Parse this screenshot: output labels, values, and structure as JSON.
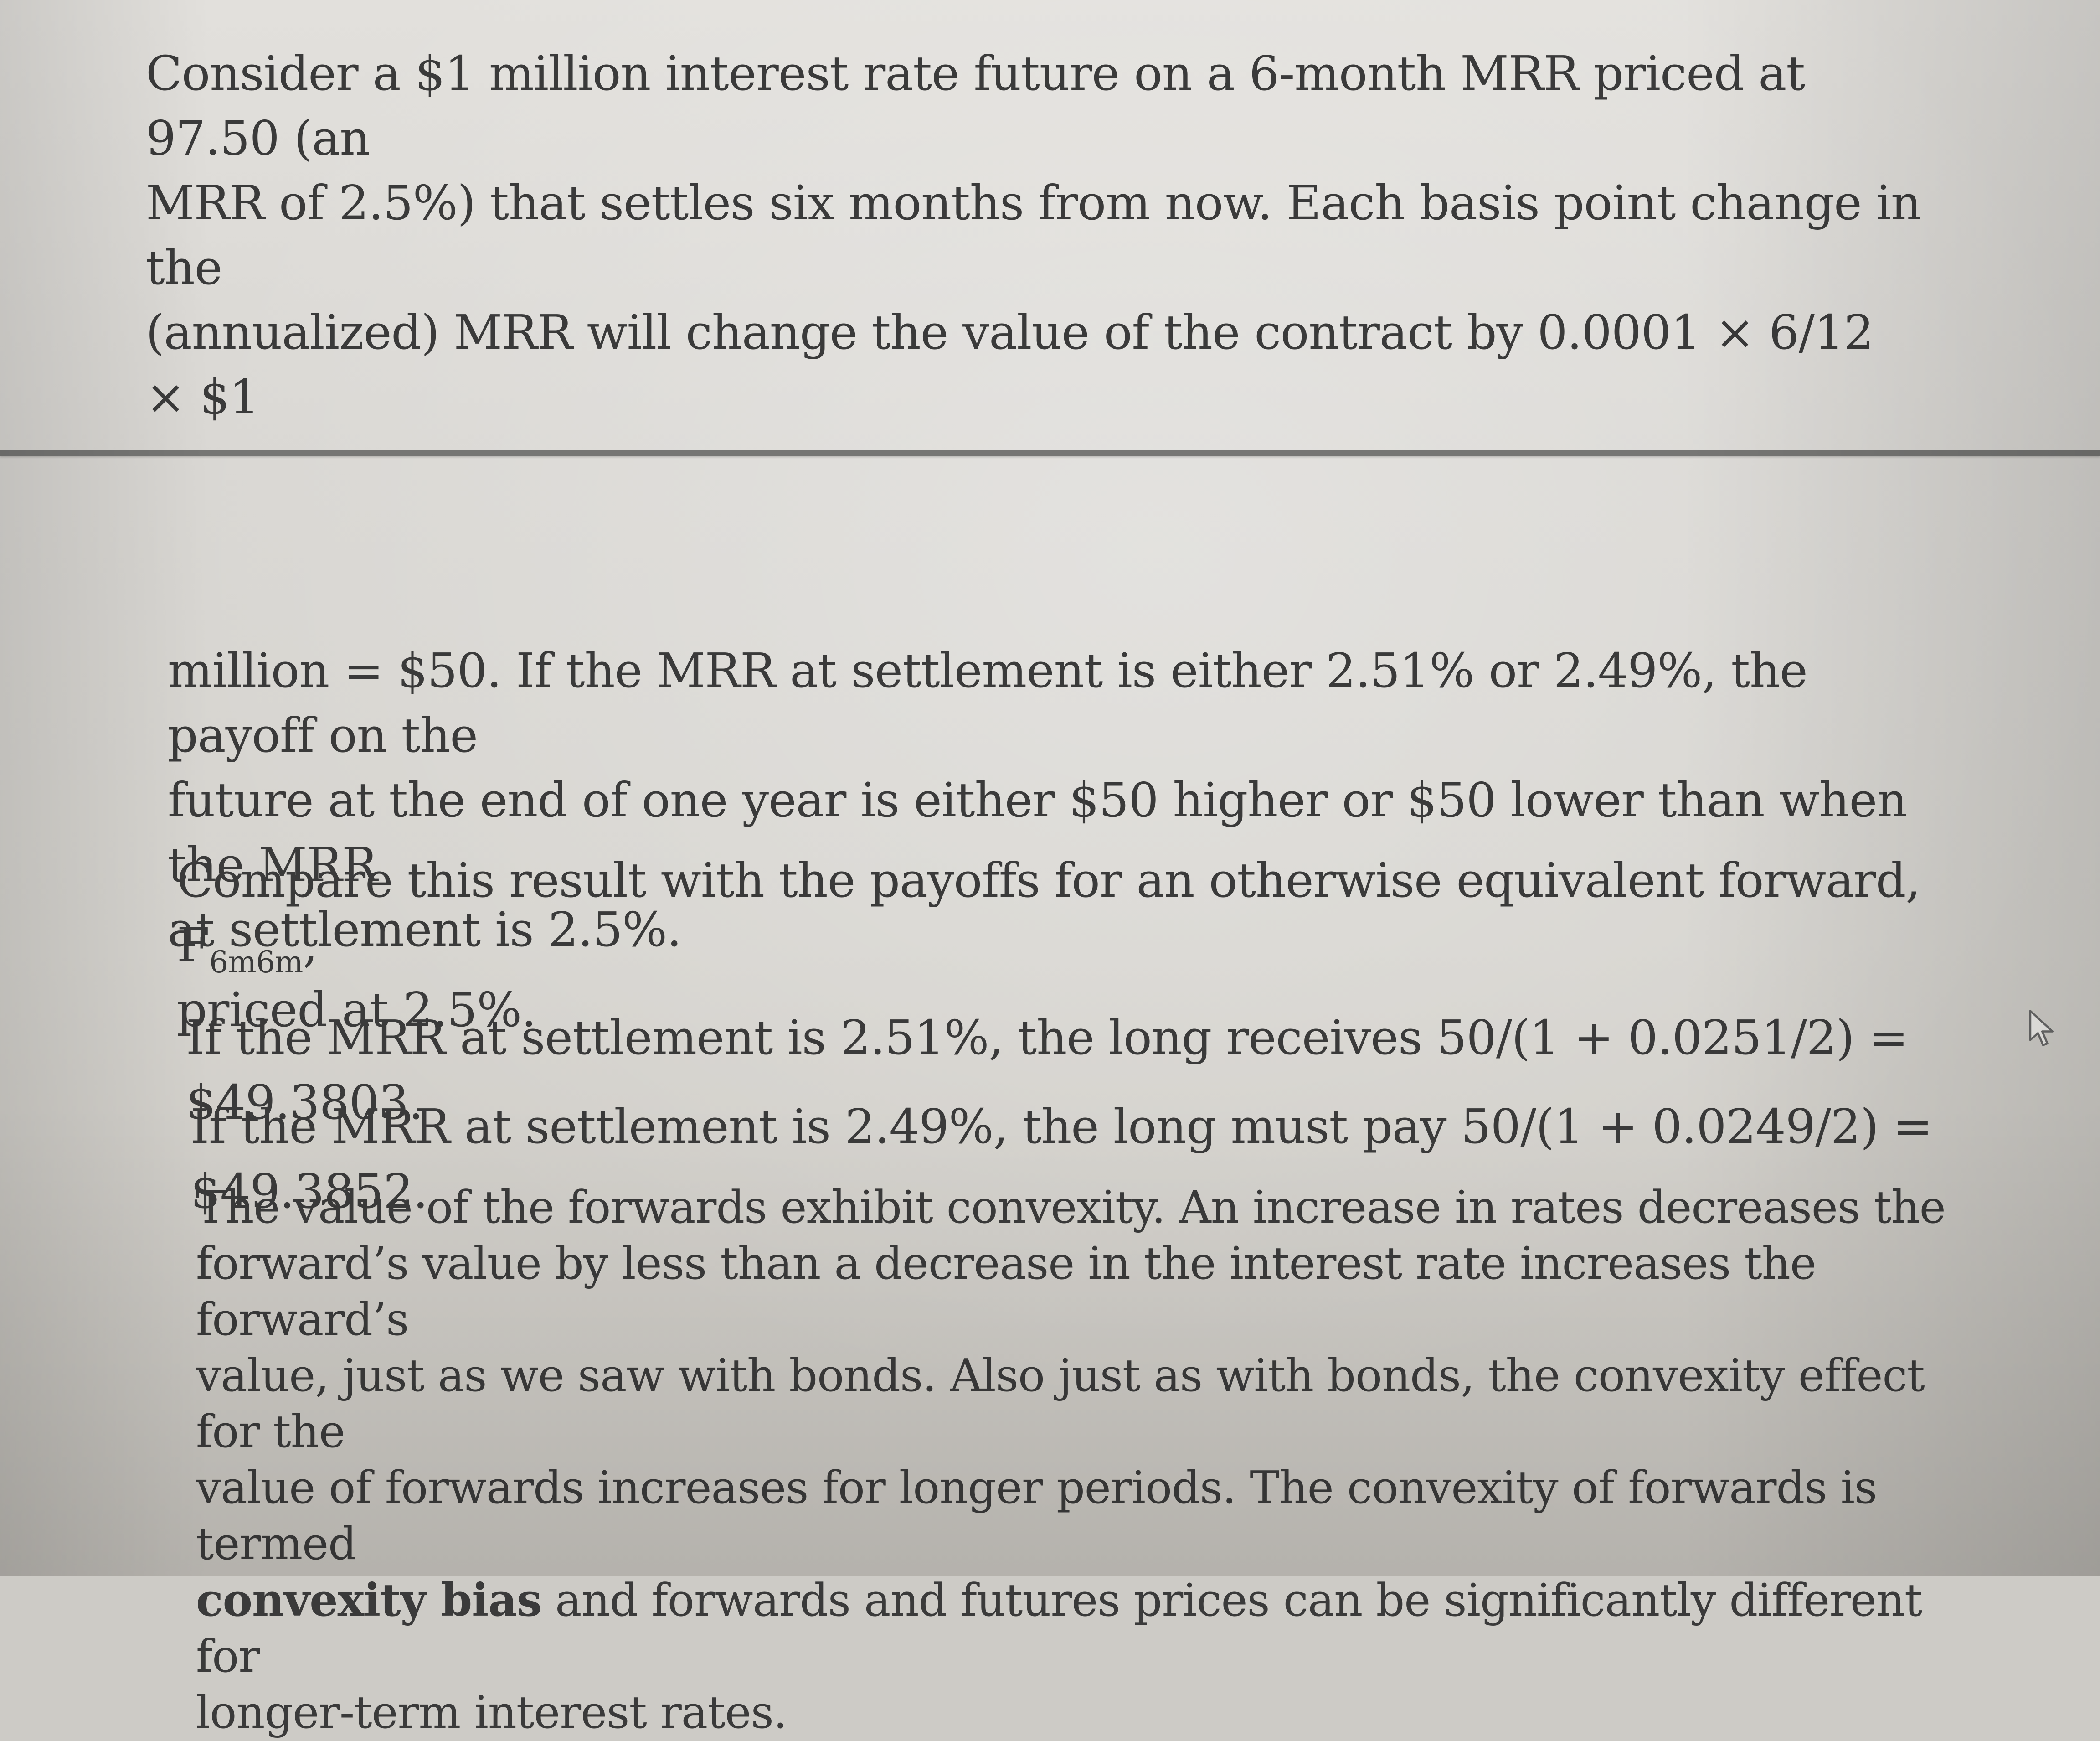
{
  "top_paragraph": {
    "line1": "Consider a $1 million interest rate future on a 6-month MRR priced at 97.50 (an",
    "line2": "MRR of 2.5%) that settles six months from now. Each basis point change in the",
    "line3": "(annualized) MRR will change the value of the contract by 0.0001 × 6/12 × $1"
  },
  "continuation": {
    "line1": "million = $50. If the MRR at settlement is either 2.51% or 2.49%, the payoff on the",
    "line2": "future at the end of one year is either $50 higher or $50 lower than when the MRR",
    "line3": "at settlement is 2.5%."
  },
  "compare": {
    "text_before": "Compare this result with the payoffs for an otherwise equivalent forward, F",
    "subscript": "6m6m",
    "text_after": ",",
    "line2": "priced at 2.5%."
  },
  "case_up": "If the MRR at settlement is 2.51%, the long receives 50/(1 + 0.0251/2) = $49.3803.",
  "case_down": "If the MRR at settlement is 2.49%, the long must pay 50/(1 + 0.0249/2) = $49.3852.",
  "convexity": {
    "line1": "The value of the forwards exhibit convexity. An increase in rates decreases the",
    "line2": "forward’s value by less than a decrease in the interest rate increases the forward’s",
    "line3": "value, just as we saw with bonds. Also just as with bonds, the convexity effect for the",
    "line4": "value of forwards increases for longer periods. The convexity of forwards is termed",
    "term": "convexity bias",
    "line5_rest": " and forwards and futures prices can be significantly different for",
    "line6": "longer-term interest rates."
  },
  "icons": {
    "cursor": "mouse-pointer-icon"
  }
}
